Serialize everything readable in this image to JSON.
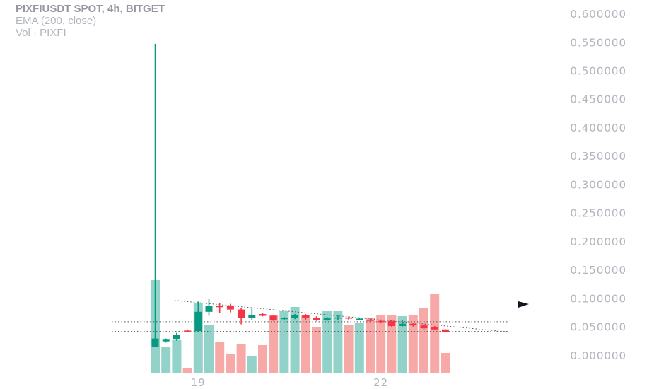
{
  "legend": {
    "symbol": "PIXFIUSDT SPOT, 4h, BITGET",
    "indicator": "EMA (200, close)",
    "volume": "Vol · PIXFI"
  },
  "colors": {
    "up": "#089981",
    "down": "#f23645",
    "vol_up": "#92d2c8",
    "vol_down": "#f7a9a7",
    "grid_text": "#b2b5be",
    "dotted": "#555555"
  },
  "chart_data": {
    "type": "candlestick",
    "title": "PIXFIUSDT SPOT, 4h, BITGET",
    "price_axis": {
      "ticks": [
        "0.600000",
        "0.550000",
        "0.500000",
        "0.450000",
        "0.400000",
        "0.350000",
        "0.300000",
        "0.250000",
        "0.200000",
        "0.150000",
        "0.100000",
        "0.050000",
        "0.000000"
      ],
      "range": [
        -0.05,
        0.61
      ]
    },
    "time_axis": {
      "labels": [
        {
          "text": "19",
          "index": 4
        },
        {
          "text": "22",
          "index": 21
        }
      ]
    },
    "candles": [
      {
        "o": 0.015,
        "h": 0.548,
        "l": 0.015,
        "c": 0.03
      },
      {
        "o": 0.025,
        "h": 0.03,
        "l": 0.023,
        "c": 0.028
      },
      {
        "o": 0.028,
        "h": 0.04,
        "l": 0.026,
        "c": 0.036
      },
      {
        "o": 0.044,
        "h": 0.046,
        "l": 0.042,
        "c": 0.043
      },
      {
        "o": 0.043,
        "h": 0.095,
        "l": 0.043,
        "c": 0.077
      },
      {
        "o": 0.077,
        "h": 0.099,
        "l": 0.07,
        "c": 0.087
      },
      {
        "o": 0.087,
        "h": 0.093,
        "l": 0.075,
        "c": 0.086
      },
      {
        "o": 0.088,
        "h": 0.091,
        "l": 0.076,
        "c": 0.081
      },
      {
        "o": 0.081,
        "h": 0.083,
        "l": 0.055,
        "c": 0.066
      },
      {
        "o": 0.066,
        "h": 0.083,
        "l": 0.063,
        "c": 0.071
      },
      {
        "o": 0.073,
        "h": 0.075,
        "l": 0.069,
        "c": 0.07
      },
      {
        "o": 0.07,
        "h": 0.071,
        "l": 0.061,
        "c": 0.063
      },
      {
        "o": 0.064,
        "h": 0.068,
        "l": 0.063,
        "c": 0.066
      },
      {
        "o": 0.066,
        "h": 0.073,
        "l": 0.064,
        "c": 0.071
      },
      {
        "o": 0.071,
        "h": 0.073,
        "l": 0.063,
        "c": 0.066
      },
      {
        "o": 0.066,
        "h": 0.069,
        "l": 0.061,
        "c": 0.063
      },
      {
        "o": 0.063,
        "h": 0.068,
        "l": 0.061,
        "c": 0.066
      },
      {
        "o": 0.066,
        "h": 0.071,
        "l": 0.063,
        "c": 0.067
      },
      {
        "o": 0.067,
        "h": 0.069,
        "l": 0.063,
        "c": 0.065
      },
      {
        "o": 0.064,
        "h": 0.067,
        "l": 0.062,
        "c": 0.065
      },
      {
        "o": 0.063,
        "h": 0.065,
        "l": 0.061,
        "c": 0.061
      },
      {
        "o": 0.061,
        "h": 0.063,
        "l": 0.058,
        "c": 0.059
      },
      {
        "o": 0.061,
        "h": 0.063,
        "l": 0.05,
        "c": 0.052
      },
      {
        "o": 0.052,
        "h": 0.062,
        "l": 0.051,
        "c": 0.056
      },
      {
        "o": 0.056,
        "h": 0.058,
        "l": 0.051,
        "c": 0.053
      },
      {
        "o": 0.053,
        "h": 0.056,
        "l": 0.045,
        "c": 0.048
      },
      {
        "o": 0.05,
        "h": 0.052,
        "l": 0.045,
        "c": 0.046
      },
      {
        "o": 0.046,
        "h": 0.046,
        "l": 0.041,
        "c": 0.042
      }
    ],
    "volume": [
      132,
      38,
      47,
      8,
      100,
      69,
      44,
      27,
      42,
      25,
      40,
      82,
      88,
      94,
      83,
      66,
      88,
      88,
      68,
      72,
      78,
      83,
      83,
      81,
      82,
      93,
      112,
      29
    ],
    "volume_dir": [
      "up",
      "up",
      "up",
      "down",
      "up",
      "up",
      "down",
      "down",
      "down",
      "up",
      "down",
      "down",
      "up",
      "up",
      "down",
      "down",
      "up",
      "up",
      "down",
      "up",
      "down",
      "down",
      "down",
      "up",
      "down",
      "down",
      "down",
      "down"
    ],
    "lines": [
      {
        "type": "horizontal",
        "value": 0.0595
      },
      {
        "type": "horizontal",
        "value": 0.0425
      },
      {
        "type": "trend",
        "from": {
          "index": 1.8,
          "value": 0.097
        },
        "to": {
          "index": 33.2,
          "value": 0.041
        }
      }
    ],
    "grid": false
  }
}
